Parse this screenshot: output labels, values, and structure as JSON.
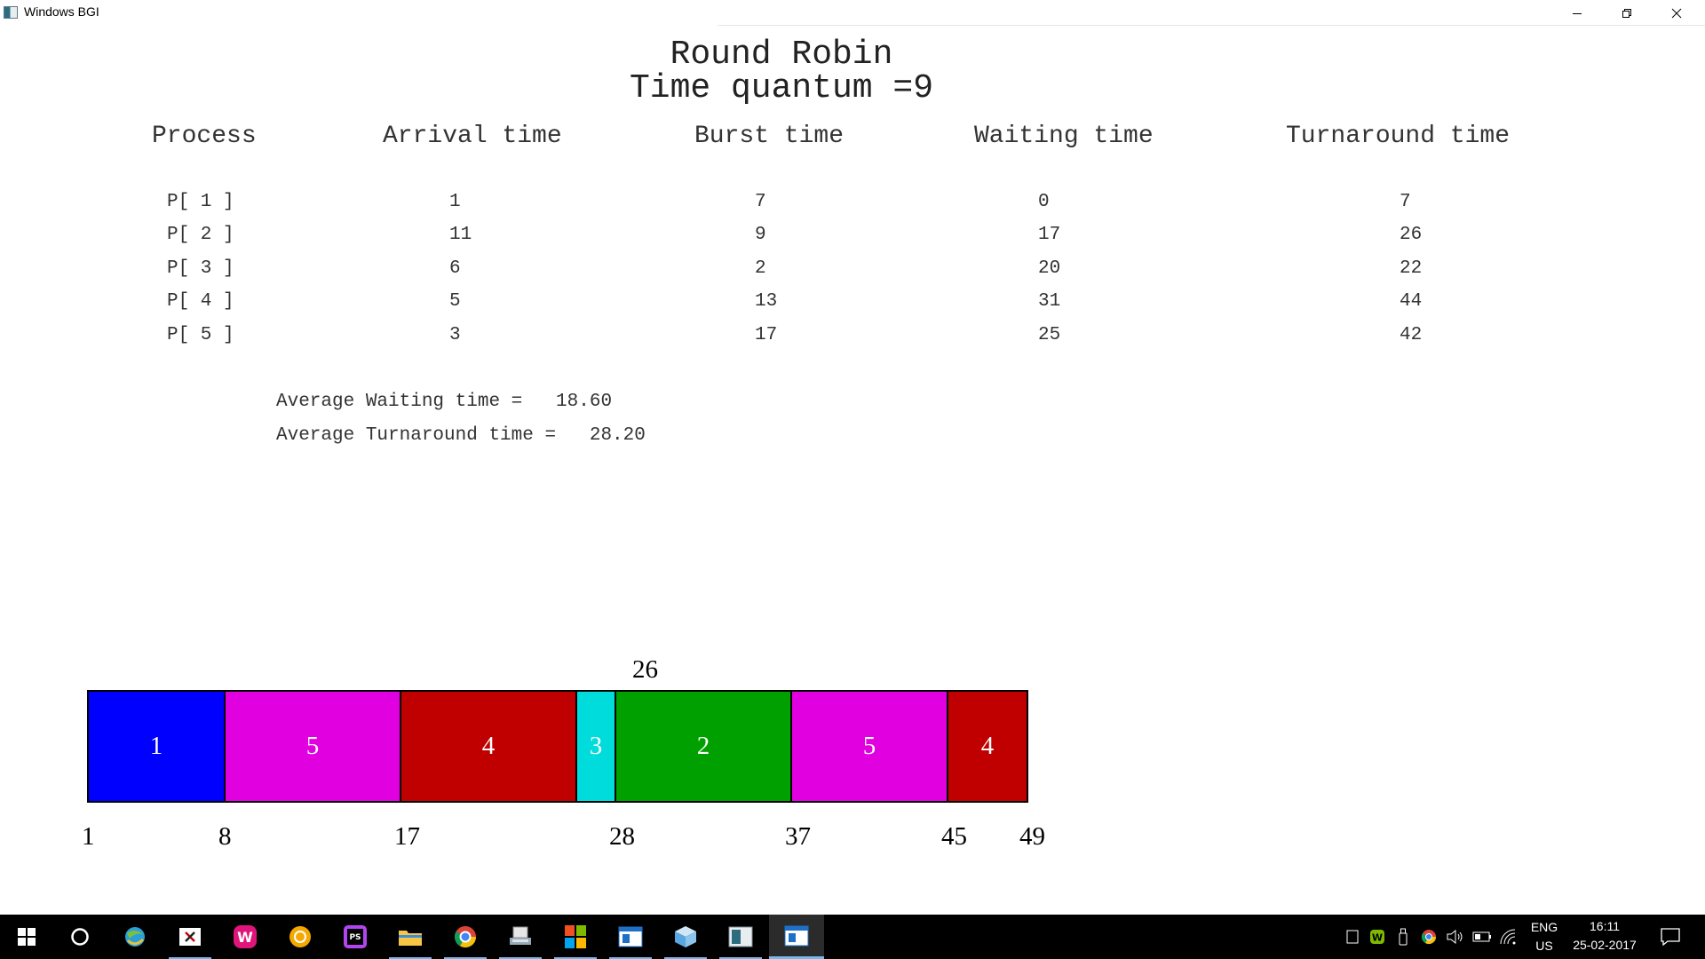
{
  "window": {
    "title": "Windows BGI"
  },
  "header": {
    "title": "Round Robin",
    "quantum_label": "Time quantum =9"
  },
  "table": {
    "columns": [
      "Process",
      "Arrival time",
      "Burst time",
      "Waiting time",
      "Turnaround time"
    ],
    "rows": [
      [
        "P[ 1 ]",
        "1",
        "7",
        "0",
        "7"
      ],
      [
        "P[ 2 ]",
        "11",
        "9",
        "17",
        "26"
      ],
      [
        "P[ 3 ]",
        "6",
        "2",
        "20",
        "22"
      ],
      [
        "P[ 4 ]",
        "5",
        "13",
        "31",
        "44"
      ],
      [
        "P[ 5 ]",
        "3",
        "17",
        "25",
        "42"
      ]
    ]
  },
  "averages": {
    "waiting_label": "Average Waiting time =   18.60",
    "turnaround_label": "Average Turnaround time =   28.20"
  },
  "gantt": {
    "blocks": [
      {
        "label": "1",
        "start": 1,
        "end": 8,
        "color": "#0000ff"
      },
      {
        "label": "5",
        "start": 8,
        "end": 17,
        "color": "#e000e0"
      },
      {
        "label": "4",
        "start": 17,
        "end": 26,
        "color": "#c00000"
      },
      {
        "label": "3",
        "start": 26,
        "end": 28,
        "color": "#00dcdc"
      },
      {
        "label": "2",
        "start": 28,
        "end": 37,
        "color": "#00a000"
      },
      {
        "label": "5",
        "start": 37,
        "end": 45,
        "color": "#e000e0"
      },
      {
        "label": "4",
        "start": 45,
        "end": 49,
        "color": "#c00000"
      }
    ],
    "bottom_ticks": [
      "1",
      "8",
      "17",
      "28",
      "37",
      "45",
      "49"
    ],
    "top_tick": "26"
  },
  "taskbar": {
    "items": [
      "start-icon",
      "cortana-icon",
      "browser-icon",
      "x-app-icon",
      "wamp-icon",
      "circle-app-icon",
      "phpstorm-icon",
      "file-explorer-icon",
      "chrome-icon",
      "scanner-icon",
      "windows-logo-icon",
      "window-app-icon",
      "cube-icon",
      "image-app-icon",
      "bgi-window-icon"
    ],
    "language": "ENG",
    "region": "US",
    "time": "16:11",
    "date": "25-02-2017"
  }
}
